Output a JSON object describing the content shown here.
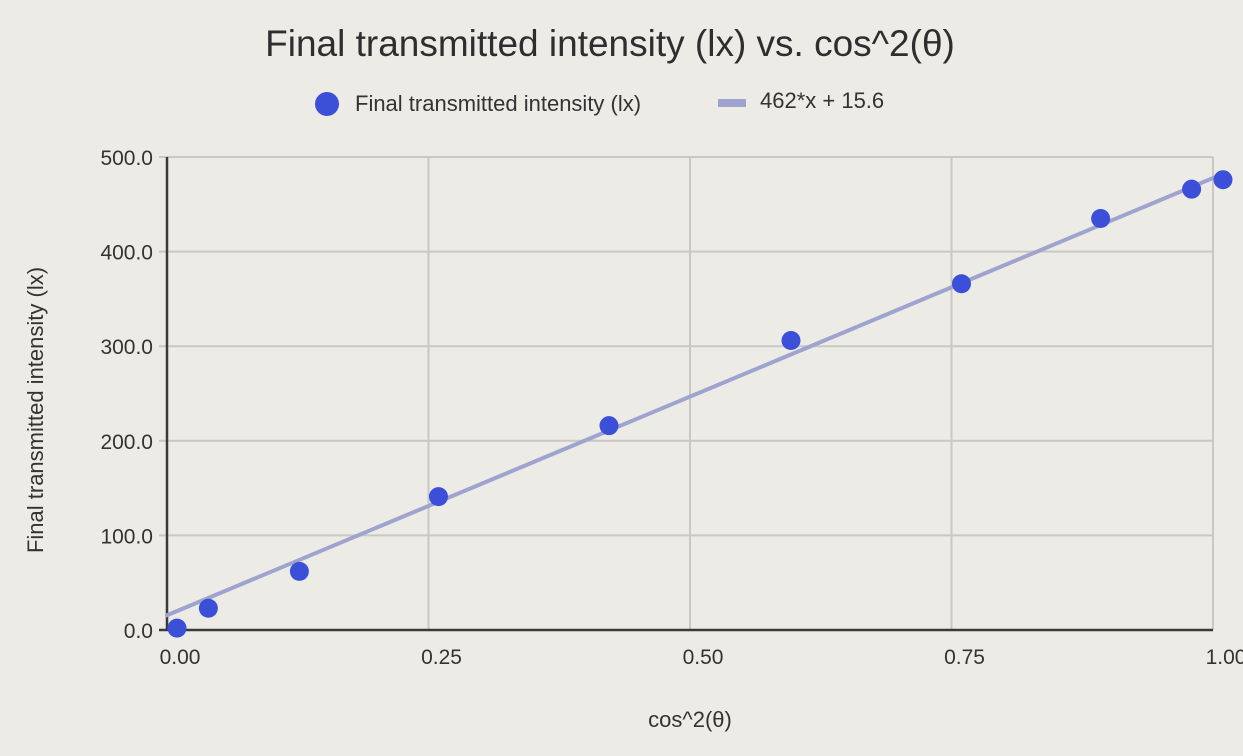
{
  "chart_data": {
    "type": "scatter",
    "title": "Final transmitted intensity (lx) vs. cos^2(θ)",
    "xlabel": "cos^2(θ)",
    "ylabel": "Final transmitted intensity (lx)",
    "xlim": [
      0,
      1
    ],
    "ylim": [
      0,
      500
    ],
    "x_ticks": [
      "0.00",
      "0.25",
      "0.50",
      "0.75",
      "1.00"
    ],
    "x_tick_values": [
      0,
      0.25,
      0.5,
      0.75,
      1.0
    ],
    "y_ticks": [
      "0.0",
      "100.0",
      "200.0",
      "300.0",
      "400.0",
      "500.0"
    ],
    "y_tick_values": [
      0,
      100,
      200,
      300,
      400,
      500
    ],
    "grid": true,
    "legend_position": "top",
    "series": [
      {
        "name": "Final transmitted intensity (lx)",
        "kind": "points",
        "color": "#3b4fd8",
        "points": [
          {
            "x": 0.0,
            "y": 2
          },
          {
            "x": 0.03,
            "y": 23
          },
          {
            "x": 0.117,
            "y": 62
          },
          {
            "x": 0.25,
            "y": 141
          },
          {
            "x": 0.413,
            "y": 216
          },
          {
            "x": 0.587,
            "y": 306
          },
          {
            "x": 0.75,
            "y": 366
          },
          {
            "x": 0.883,
            "y": 435
          },
          {
            "x": 0.97,
            "y": 466
          },
          {
            "x": 1.0,
            "y": 476
          }
        ]
      },
      {
        "name": "462*x + 15.6",
        "kind": "trendline",
        "color": "#9ea4cf",
        "slope": 462,
        "intercept": 15.6
      }
    ]
  }
}
